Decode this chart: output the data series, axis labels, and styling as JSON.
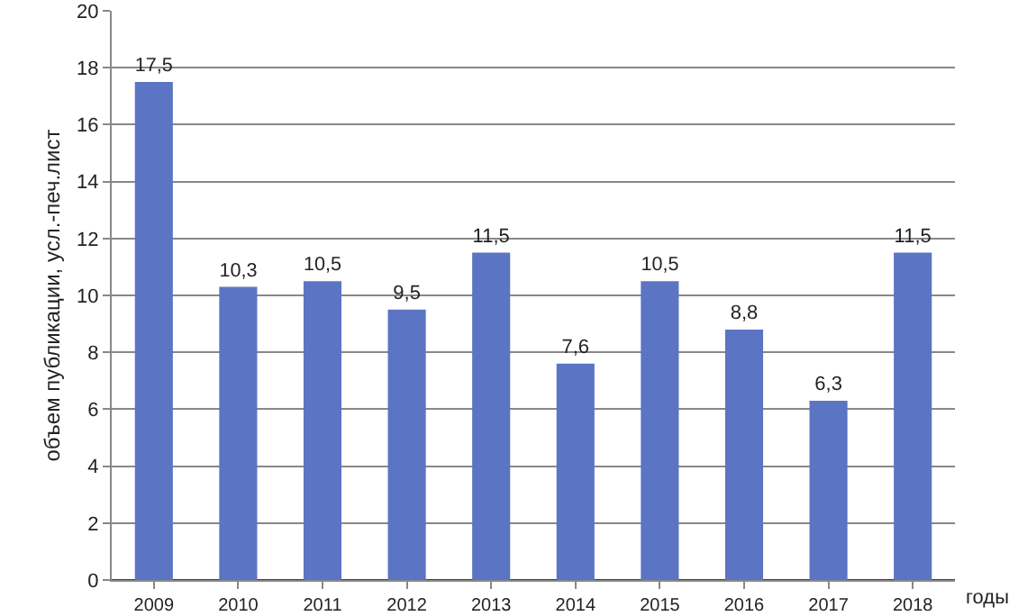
{
  "chart_data": {
    "type": "bar",
    "ylabel": "объем публикации, усл.-печ.лист",
    "xlabel": "годы",
    "categories": [
      "2009",
      "2010",
      "2011",
      "2012",
      "2013",
      "2014",
      "2015",
      "2016",
      "2017",
      "2018"
    ],
    "values": [
      17.5,
      10.3,
      10.5,
      9.5,
      11.5,
      7.6,
      10.5,
      8.8,
      6.3,
      11.5
    ],
    "value_labels": [
      "17,5",
      "10,3",
      "10,5",
      "9,5",
      "11,5",
      "7,6",
      "10,5",
      "8,8",
      "6,3",
      "11,5"
    ],
    "color": "#5b74c4",
    "ylim": [
      0,
      20
    ],
    "yticks": [
      0,
      2,
      4,
      6,
      8,
      10,
      12,
      14,
      16,
      18,
      20
    ],
    "grid": "y",
    "legend": false
  }
}
